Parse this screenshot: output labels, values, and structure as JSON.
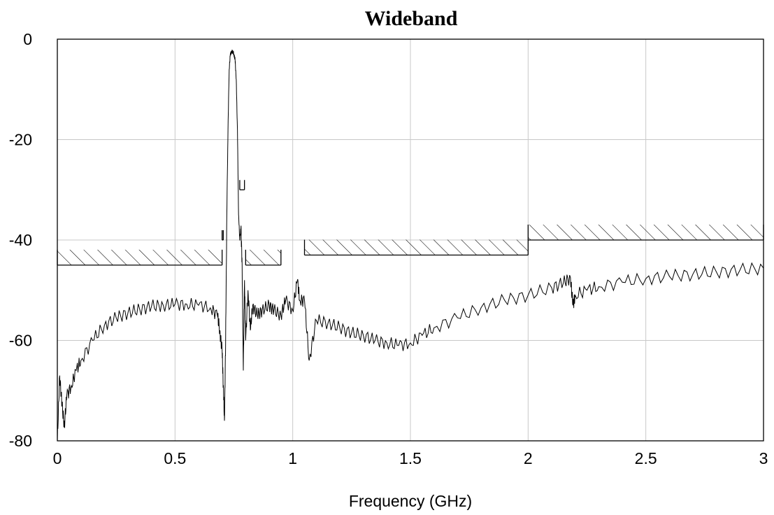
{
  "chart_data": {
    "type": "line",
    "title": "Wideband",
    "xlabel": "Frequency (GHz)",
    "ylabel": "",
    "xlim": [
      0,
      3
    ],
    "ylim": [
      -80,
      0
    ],
    "xticks": [
      0,
      0.5,
      1,
      1.5,
      2,
      2.5,
      3
    ],
    "xtick_labels": [
      "0",
      "0.5",
      "1",
      "1.5",
      "2",
      "2.5",
      "3"
    ],
    "yticks": [
      0,
      -20,
      -40,
      -60,
      -80
    ],
    "ytick_labels": [
      "0",
      "-20",
      "-40",
      "-60",
      "-80"
    ],
    "grid": true,
    "legend": "none",
    "series": [
      {
        "x": [
          0.0,
          0.01,
          0.02,
          0.03,
          0.04,
          0.06,
          0.08,
          0.1,
          0.15,
          0.2,
          0.25,
          0.3,
          0.35,
          0.4,
          0.45,
          0.5,
          0.55,
          0.6,
          0.65,
          0.68,
          0.69,
          0.7,
          0.705,
          0.71,
          0.715,
          0.72,
          0.725,
          0.73,
          0.735,
          0.74,
          0.745,
          0.75,
          0.755,
          0.76,
          0.765,
          0.77,
          0.775,
          0.78,
          0.785,
          0.79,
          0.795,
          0.8,
          0.81,
          0.82,
          0.83,
          0.85,
          0.87,
          0.9,
          0.92,
          0.95,
          0.97,
          1.0,
          1.02,
          1.03,
          1.05,
          1.07,
          1.1,
          1.15,
          1.2,
          1.25,
          1.3,
          1.35,
          1.4,
          1.45,
          1.5,
          1.55,
          1.6,
          1.7,
          1.8,
          1.9,
          2.0,
          2.1,
          2.15,
          2.18,
          2.19,
          2.2,
          2.25,
          2.3,
          2.4,
          2.5,
          2.6,
          2.7,
          2.8,
          2.9,
          3.0
        ],
        "y": [
          -80,
          -67,
          -73,
          -77,
          -71,
          -69,
          -66,
          -64,
          -60,
          -57,
          -55.5,
          -54.5,
          -53.8,
          -53.2,
          -53,
          -52.8,
          -52.8,
          -53,
          -53.5,
          -55,
          -58,
          -62,
          -69,
          -76,
          -60,
          -35,
          -18,
          -6,
          -3,
          -2.5,
          -2.5,
          -3,
          -4,
          -8,
          -18,
          -35,
          -40,
          -37.5,
          -45,
          -66,
          -48,
          -60,
          -50,
          -58,
          -53,
          -55,
          -54,
          -53,
          -54,
          -55,
          -52,
          -54,
          -48,
          -52,
          -52,
          -64,
          -56,
          -56.5,
          -57.5,
          -58.5,
          -59,
          -60,
          -60.5,
          -61,
          -60.5,
          -59,
          -57.5,
          -55.5,
          -53.5,
          -52,
          -51,
          -49.5,
          -48.5,
          -47.5,
          -53,
          -51,
          -50,
          -49.3,
          -48.4,
          -47.7,
          -47.2,
          -46.8,
          -46.4,
          -46,
          -45.6
        ]
      }
    ],
    "mask": {
      "hatched_limits": [
        {
          "x": [
            0,
            0.7
          ],
          "y": -45
        },
        {
          "x": [
            0.8,
            0.95
          ],
          "y": -45
        },
        {
          "x": [
            1.05,
            2.0
          ],
          "y": -43
        },
        {
          "x": [
            2.0,
            3.0
          ],
          "y": -40
        }
      ],
      "small_limits": [
        {
          "x": [
            0.775,
            0.795
          ],
          "y": -30
        },
        {
          "x": [
            0.7,
            0.705
          ],
          "y": -40
        }
      ]
    }
  }
}
